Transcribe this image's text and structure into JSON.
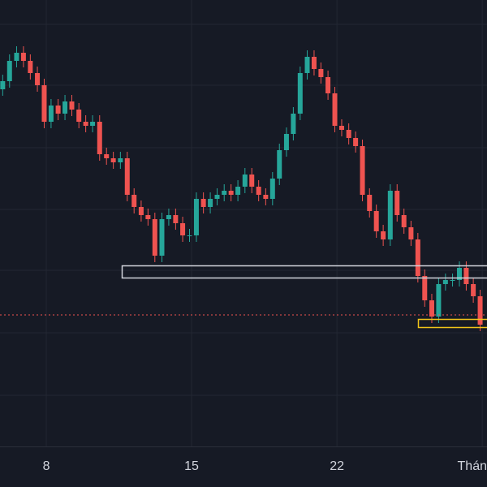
{
  "chart_data": {
    "type": "candlestick",
    "x": [
      5.9,
      6.23,
      6.57,
      6.9,
      7.23,
      7.57,
      7.9,
      8.23,
      8.57,
      8.9,
      9.23,
      9.57,
      9.9,
      10.23,
      10.57,
      10.9,
      11.23,
      11.57,
      11.9,
      12.23,
      12.57,
      12.9,
      13.23,
      13.57,
      13.9,
      14.23,
      14.57,
      14.9,
      15.23,
      15.57,
      15.9,
      16.23,
      16.57,
      16.9,
      17.23,
      17.57,
      17.9,
      18.23,
      18.57,
      18.9,
      19.23,
      19.57,
      19.9,
      20.23,
      20.57,
      20.9,
      21.23,
      21.57,
      21.9,
      22.23,
      22.57,
      22.9,
      23.23,
      23.57,
      23.9,
      24.23,
      24.57,
      24.9,
      25.23,
      25.57,
      25.9,
      26.23,
      26.57,
      26.9,
      27.23,
      27.57,
      27.9,
      28.23,
      28.57,
      28.9
    ],
    "open": [
      440,
      450,
      475,
      485,
      475,
      460,
      445,
      400,
      420,
      410,
      425,
      415,
      400,
      395,
      400,
      360,
      355,
      350,
      355,
      310,
      295,
      285,
      280,
      235,
      280,
      285,
      275,
      260,
      260,
      305,
      295,
      305,
      310,
      315,
      310,
      320,
      335,
      320,
      310,
      305,
      330,
      365,
      385,
      410,
      460,
      480,
      465,
      455,
      435,
      395,
      390,
      380,
      370,
      310,
      290,
      265,
      255,
      315,
      285,
      270,
      255,
      210,
      180,
      160,
      200,
      205,
      205,
      220,
      200,
      185
    ],
    "high": [
      458,
      483,
      493,
      493,
      483,
      468,
      453,
      428,
      428,
      433,
      433,
      423,
      408,
      408,
      408,
      368,
      363,
      363,
      363,
      318,
      303,
      293,
      288,
      288,
      293,
      293,
      283,
      268,
      313,
      313,
      313,
      318,
      323,
      323,
      328,
      343,
      343,
      328,
      318,
      338,
      373,
      393,
      418,
      468,
      488,
      488,
      473,
      463,
      443,
      403,
      398,
      388,
      378,
      318,
      298,
      273,
      323,
      323,
      293,
      278,
      263,
      218,
      188,
      208,
      213,
      213,
      228,
      228,
      208,
      193
    ],
    "low": [
      432,
      442,
      467,
      467,
      452,
      437,
      392,
      392,
      402,
      402,
      407,
      392,
      387,
      387,
      352,
      347,
      342,
      342,
      302,
      287,
      277,
      272,
      227,
      227,
      272,
      267,
      252,
      252,
      252,
      287,
      287,
      297,
      302,
      302,
      302,
      312,
      312,
      302,
      297,
      297,
      322,
      357,
      377,
      402,
      452,
      457,
      447,
      427,
      387,
      382,
      372,
      362,
      302,
      282,
      257,
      247,
      247,
      277,
      262,
      247,
      202,
      172,
      152,
      152,
      192,
      197,
      197,
      192,
      177,
      142
    ],
    "close": [
      450,
      475,
      485,
      475,
      460,
      445,
      400,
      420,
      410,
      425,
      415,
      400,
      395,
      400,
      360,
      355,
      350,
      355,
      310,
      295,
      285,
      280,
      235,
      280,
      285,
      275,
      260,
      260,
      305,
      295,
      305,
      310,
      315,
      310,
      320,
      335,
      320,
      310,
      305,
      330,
      365,
      385,
      410,
      460,
      480,
      465,
      455,
      435,
      395,
      390,
      380,
      370,
      310,
      290,
      265,
      255,
      315,
      285,
      270,
      255,
      210,
      180,
      160,
      200,
      205,
      205,
      220,
      200,
      185,
      150
    ],
    "up_color": "#26a69a",
    "down_color": "#ef5350",
    "xlim": [
      5.77,
      29.23
    ],
    "xticks": [
      8,
      15,
      22,
      {
        "value": 29,
        "label": "Thán"
      }
    ],
    "ylim": [
      0,
      550
    ],
    "yticks": [
      63,
      140,
      217,
      292,
      368,
      445,
      520
    ],
    "grid": true
  }
}
